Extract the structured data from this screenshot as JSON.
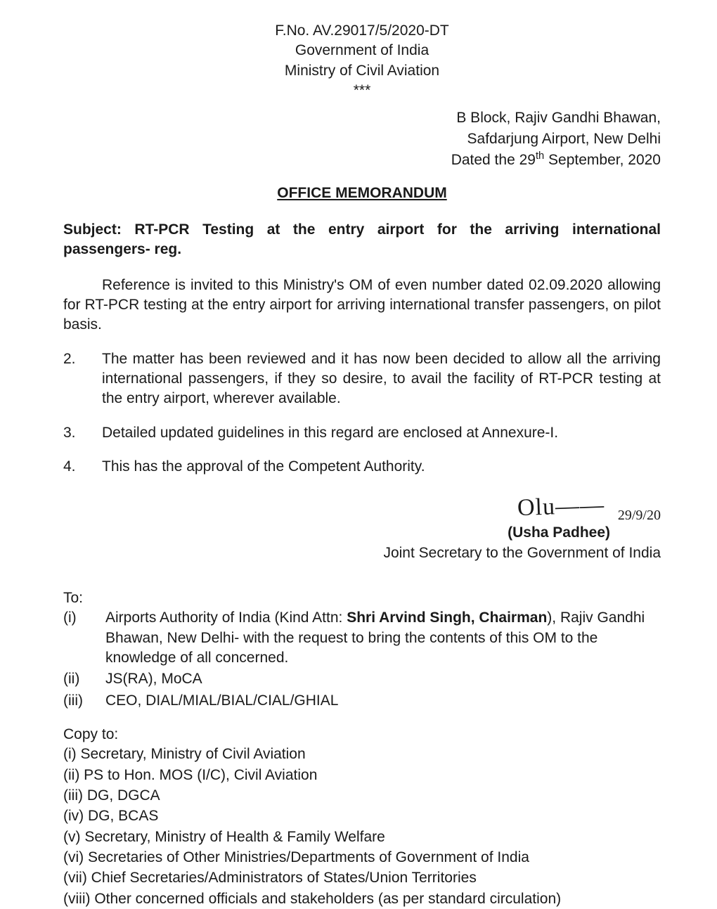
{
  "header": {
    "file_no": "F.No. AV.29017/5/2020-DT",
    "govt": "Government of India",
    "ministry": "Ministry of Civil Aviation",
    "stars": "***"
  },
  "address": {
    "line1": "B Block, Rajiv Gandhi Bhawan,",
    "line2": "Safdarjung Airport, New Delhi",
    "date_prefix": "Dated the 29",
    "date_sup": "th",
    "date_suffix": " September, 2020"
  },
  "title": "OFFICE MEMORANDUM",
  "subject_label": "Subject:",
  "subject_text": " RT-PCR Testing at the entry airport for the arriving international passengers- reg.",
  "paras": {
    "p1": "Reference is invited to this Ministry's OM of even number dated 02.09.2020 allowing for RT-PCR testing at the entry airport for arriving international transfer passengers, on pilot basis.",
    "p2_num": "2.",
    "p2": "The matter has been reviewed and it has now been decided to allow all the arriving international passengers, if they so desire, to avail the facility of RT-PCR testing at the entry airport, wherever available.",
    "p3_num": "3.",
    "p3": "Detailed updated guidelines in this regard are enclosed at Annexure-I.",
    "p4_num": "4.",
    "p4": "This has the approval of the Competent Authority."
  },
  "signature": {
    "scribble": "Olu——",
    "hand_date": "29/9/20",
    "name": "(Usha Padhee)",
    "designation": "Joint Secretary to the Government of India"
  },
  "to": {
    "heading": "To:",
    "items": [
      {
        "lbl": "(i)",
        "pre": "Airports Authority of India (Kind Attn: ",
        "bold": "Shri Arvind Singh, Chairman",
        "post": "), Rajiv Gandhi Bhawan, New Delhi- with the request to bring the contents of this OM to the knowledge of all concerned."
      },
      {
        "lbl": "(ii)",
        "pre": "JS(RA), MoCA",
        "bold": "",
        "post": ""
      },
      {
        "lbl": "(iii)",
        "pre": "CEO, DIAL/MIAL/BIAL/CIAL/GHIAL",
        "bold": "",
        "post": ""
      }
    ]
  },
  "copy": {
    "heading": "Copy to:",
    "items": [
      "(i) Secretary, Ministry of Civil Aviation",
      "(ii) PS to Hon. MOS (I/C), Civil Aviation",
      "(iii) DG, DGCA",
      "(iv) DG, BCAS",
      "(v) Secretary, Ministry of Health & Family Welfare",
      "(vi) Secretaries of Other Ministries/Departments of Government of India",
      "(vii) Chief Secretaries/Administrators of States/Union Territories",
      "(viii) Other concerned officials and stakeholders (as per standard circulation)"
    ]
  }
}
